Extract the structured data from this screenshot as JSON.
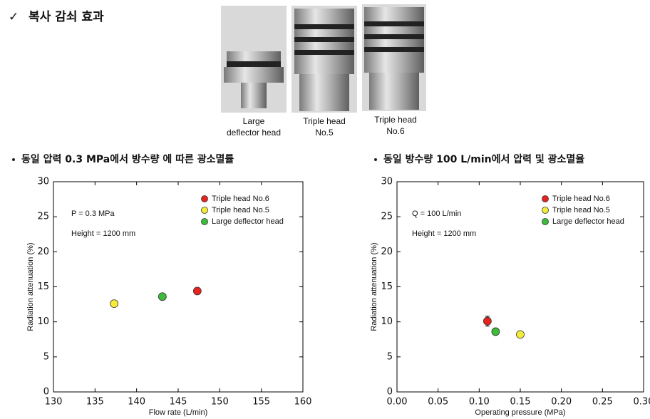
{
  "header": {
    "mark": "✓",
    "title": "복사 감쇠 효과"
  },
  "images": [
    {
      "caption": [
        "Large",
        "deflector head"
      ]
    },
    {
      "caption": [
        "Triple head",
        "No.5"
      ]
    },
    {
      "caption": [
        "Triple head",
        "No.6"
      ]
    }
  ],
  "chart_data": [
    {
      "type": "scatter",
      "subtitle": "동일 압력 0.3 MPa에서 방수량 에 따른 광소멸률",
      "x_label": "Flow rate (L/min)",
      "y_label": "Radiation attenuation (%)",
      "annotations": [
        "P = 0.3 MPa",
        "Height = 1200 mm"
      ],
      "xlim": [
        130,
        160
      ],
      "xticks": [
        130,
        135,
        140,
        145,
        150,
        155,
        160
      ],
      "ylim": [
        0,
        30
      ],
      "yticks": [
        0,
        5,
        10,
        15,
        20,
        25,
        30
      ],
      "legend": "upper right",
      "series": [
        {
          "name": "Triple head No.6",
          "color": "#e8231f",
          "x": [
            147.3
          ],
          "values": [
            14.4
          ],
          "errors": [
            0.4
          ]
        },
        {
          "name": "Triple head No.5",
          "color": "#f5ec3a",
          "x": [
            137.3
          ],
          "values": [
            12.6
          ],
          "errors": [
            0.4
          ]
        },
        {
          "name": "Large deflector head",
          "color": "#3dbb3b",
          "x": [
            143.1
          ],
          "values": [
            13.6
          ],
          "errors": [
            0.4
          ]
        }
      ]
    },
    {
      "type": "scatter",
      "subtitle": "동일 방수량 100 L/min에서 압력 및 광소멸율",
      "x_label": "Operating pressure (MPa)",
      "y_label": "Radiation attenuation (%)",
      "annotations": [
        "Q = 100 L/min",
        "Height = 1200 mm"
      ],
      "xlim": [
        0,
        0.3
      ],
      "xticks": [
        {
          "value": 0,
          "label": "0.00"
        },
        {
          "value": 0.05,
          "label": "0.05"
        },
        {
          "value": 0.1,
          "label": "0.10"
        },
        {
          "value": 0.15,
          "label": "0.15"
        },
        {
          "value": 0.2,
          "label": "0.20"
        },
        {
          "value": 0.25,
          "label": "0.25"
        },
        {
          "value": 0.3,
          "label": "0.30"
        }
      ],
      "ylim": [
        0,
        30
      ],
      "yticks": [
        0,
        5,
        10,
        15,
        20,
        25,
        30
      ],
      "legend": "upper right",
      "series": [
        {
          "name": "Triple head No.6",
          "color": "#e8231f",
          "x": [
            0.11
          ],
          "values": [
            10.1
          ],
          "errors": [
            0.7
          ]
        },
        {
          "name": "Triple head No.5",
          "color": "#f5ec3a",
          "x": [
            0.15
          ],
          "values": [
            8.2
          ],
          "errors": [
            0.4
          ]
        },
        {
          "name": "Large deflector head",
          "color": "#3dbb3b",
          "x": [
            0.12
          ],
          "values": [
            8.6
          ],
          "errors": [
            0.4
          ]
        }
      ]
    }
  ]
}
